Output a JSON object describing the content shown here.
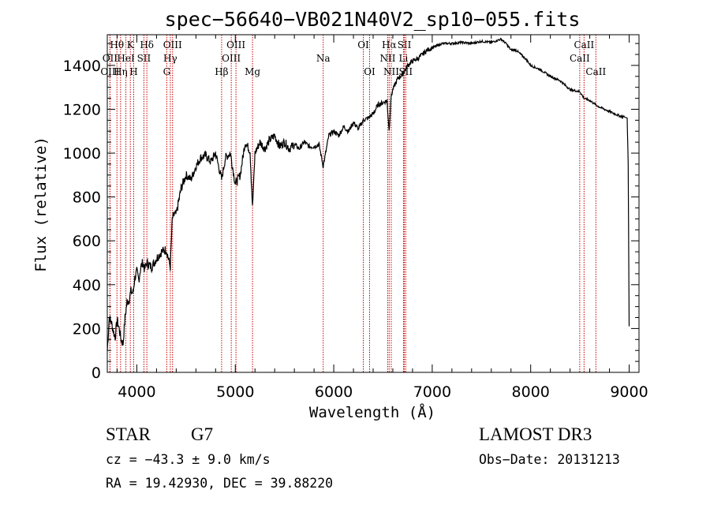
{
  "chart_data": {
    "type": "line",
    "title": "spec−56640−VB021N40V2_sp10−055.fits",
    "xlabel": "Wavelength (Å)",
    "ylabel": "Flux (relative)",
    "xlim": [
      3700,
      9100
    ],
    "ylim": [
      0,
      1540
    ],
    "xticks": [
      4000,
      5000,
      6000,
      7000,
      8000,
      9000
    ],
    "yticks": [
      0,
      200,
      400,
      600,
      800,
      1000,
      1200,
      1400
    ],
    "series": [
      {
        "name": "flux",
        "x": [
          3700,
          3720,
          3740,
          3760,
          3780,
          3800,
          3820,
          3840,
          3860,
          3880,
          3900,
          3920,
          3940,
          3960,
          3980,
          4000,
          4020,
          4040,
          4060,
          4080,
          4100,
          4150,
          4200,
          4250,
          4300,
          4340,
          4360,
          4380,
          4400,
          4450,
          4500,
          4550,
          4600,
          4650,
          4700,
          4750,
          4800,
          4861,
          4900,
          4950,
          5000,
          5050,
          5100,
          5150,
          5175,
          5200,
          5250,
          5300,
          5350,
          5400,
          5450,
          5500,
          5550,
          5600,
          5650,
          5700,
          5750,
          5800,
          5850,
          5893,
          5950,
          6000,
          6050,
          6100,
          6150,
          6200,
          6250,
          6300,
          6350,
          6400,
          6450,
          6500,
          6540,
          6563,
          6580,
          6600,
          6650,
          6700,
          6750,
          6800,
          6850,
          6900,
          6950,
          7000,
          7100,
          7200,
          7300,
          7400,
          7500,
          7600,
          7700,
          7750,
          7800,
          7850,
          7900,
          7950,
          8000,
          8100,
          8200,
          8300,
          8400,
          8500,
          8542,
          8600,
          8662,
          8700,
          8800,
          8900,
          8950,
          8980,
          8990,
          9000
        ],
        "y": [
          100,
          250,
          230,
          190,
          160,
          240,
          200,
          150,
          130,
          250,
          320,
          330,
          370,
          360,
          430,
          460,
          420,
          480,
          500,
          470,
          500,
          480,
          520,
          550,
          560,
          480,
          700,
          720,
          720,
          840,
          900,
          880,
          940,
          980,
          990,
          960,
          1000,
          880,
          980,
          1000,
          860,
          900,
          1050,
          1010,
          750,
          1000,
          1050,
          1020,
          1060,
          1080,
          1030,
          1050,
          1020,
          1040,
          1020,
          1050,
          1030,
          1030,
          1040,
          940,
          1080,
          1100,
          1080,
          1120,
          1100,
          1140,
          1110,
          1150,
          1160,
          1180,
          1220,
          1230,
          1240,
          1100,
          1250,
          1290,
          1340,
          1360,
          1400,
          1420,
          1430,
          1450,
          1470,
          1480,
          1500,
          1500,
          1505,
          1500,
          1510,
          1505,
          1520,
          1500,
          1470,
          1470,
          1450,
          1430,
          1400,
          1380,
          1350,
          1330,
          1290,
          1280,
          1250,
          1240,
          1220,
          1210,
          1190,
          1170,
          1165,
          1160,
          950,
          210
        ]
      }
    ],
    "spectral_lines": [
      {
        "label": "Hθ",
        "x": 3798,
        "row": 1
      },
      {
        "label": "OII",
        "x": 3727,
        "row": 2
      },
      {
        "label": "OIII",
        "x": 3727,
        "row": 3
      },
      {
        "label": "Hη",
        "x": 3835,
        "row": 3
      },
      {
        "label": "K",
        "x": 3934,
        "row": 1
      },
      {
        "label": "HeI",
        "x": 3889,
        "row": 2
      },
      {
        "label": "H",
        "x": 3968,
        "row": 3
      },
      {
        "label": "Hδ",
        "x": 4102,
        "row": 1
      },
      {
        "label": "SII",
        "x": 4072,
        "row": 2
      },
      {
        "label": "OIII",
        "x": 4363,
        "row": 1
      },
      {
        "label": "Hγ",
        "x": 4340,
        "row": 2
      },
      {
        "label": "G",
        "x": 4304,
        "row": 3
      },
      {
        "label": "OIII",
        "x": 5007,
        "row": 1
      },
      {
        "label": "OIII",
        "x": 4959,
        "row": 2
      },
      {
        "label": "Hβ",
        "x": 4861,
        "row": 3
      },
      {
        "label": "Mg",
        "x": 5175,
        "row": 3
      },
      {
        "label": "Na",
        "x": 5893,
        "row": 2
      },
      {
        "label": "OI",
        "x": 6300,
        "row": 1
      },
      {
        "label": "OI",
        "x": 6364,
        "row": 3
      },
      {
        "label": "Hα",
        "x": 6563,
        "row": 1
      },
      {
        "label": "SII",
        "x": 6717,
        "row": 1
      },
      {
        "label": "NII",
        "x": 6548,
        "row": 2
      },
      {
        "label": "Li",
        "x": 6708,
        "row": 2
      },
      {
        "label": "NII",
        "x": 6584,
        "row": 3
      },
      {
        "label": "SII",
        "x": 6731,
        "row": 3
      },
      {
        "label": "CaII",
        "x": 8542,
        "row": 1
      },
      {
        "label": "CaII",
        "x": 8498,
        "row": 2
      },
      {
        "label": "CaII",
        "x": 8662,
        "row": 3
      }
    ],
    "line_color": "#cc0000",
    "grid": false
  },
  "info": {
    "object_class": "STAR",
    "subclass": "G7",
    "survey": "LAMOST DR3",
    "cz": "cz = −43.3 ± 9.0 km/s",
    "obs_date": "Obs−Date: 20131213",
    "coords": "RA =  19.42930, DEC =  39.88220"
  }
}
